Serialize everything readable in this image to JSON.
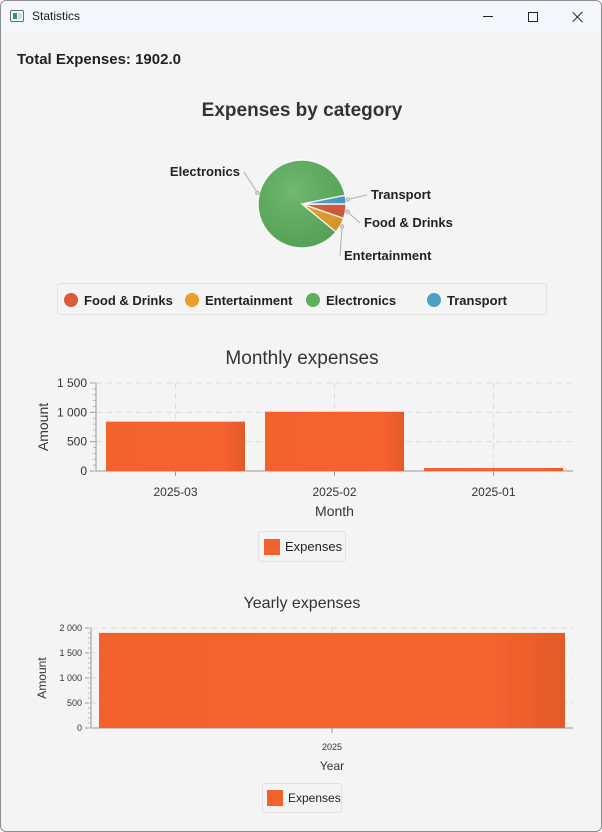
{
  "window": {
    "title": "Statistics",
    "minimize_icon": "minimize-icon",
    "maximize_icon": "maximize-icon",
    "close_icon": "close-icon"
  },
  "total": {
    "label": "Total Expenses: 1902.0"
  },
  "colors": {
    "food": "#db5c38",
    "entertainment": "#e8a02a",
    "electronics": "#5cb05e",
    "transport": "#4aa1c4",
    "bar": "#f3622d"
  },
  "pie": {
    "title": "Expenses by category",
    "legend": [
      "Food & Drinks",
      "Entertainment",
      "Electronics",
      "Transport"
    ]
  },
  "monthly": {
    "title": "Monthly expenses",
    "xlabel": "Month",
    "ylabel": "Amount",
    "legend": "Expenses"
  },
  "yearly": {
    "title": "Yearly expenses",
    "xlabel": "Year",
    "ylabel": "Amount",
    "legend": "Expenses"
  },
  "chart_data": [
    {
      "type": "pie",
      "title": "Expenses by category",
      "categories": [
        "Food & Drinks",
        "Entertainment",
        "Electronics",
        "Transport"
      ],
      "values": [
        101,
        108,
        1633,
        60
      ],
      "legend_position": "bottom"
    },
    {
      "type": "bar",
      "title": "Monthly expenses",
      "xlabel": "Month",
      "ylabel": "Amount",
      "categories": [
        "2025-03",
        "2025-02",
        "2025-01"
      ],
      "series": [
        {
          "name": "Expenses",
          "values": [
            841,
            1010,
            51
          ]
        }
      ],
      "ylim": [
        0,
        1500
      ],
      "yticks": [
        0,
        500,
        1000,
        1500
      ],
      "ytick_labels": [
        "0",
        "500",
        "1 000",
        "1 500"
      ],
      "grid": true,
      "legend_position": "bottom"
    },
    {
      "type": "bar",
      "title": "Yearly expenses",
      "xlabel": "Year",
      "ylabel": "Amount",
      "categories": [
        "2025"
      ],
      "series": [
        {
          "name": "Expenses",
          "values": [
            1902
          ]
        }
      ],
      "ylim": [
        0,
        2000
      ],
      "yticks": [
        0,
        500,
        1000,
        1500,
        2000
      ],
      "ytick_labels": [
        "0",
        "500",
        "1 000",
        "1 500",
        "2 000"
      ],
      "grid": true,
      "legend_position": "bottom"
    }
  ]
}
